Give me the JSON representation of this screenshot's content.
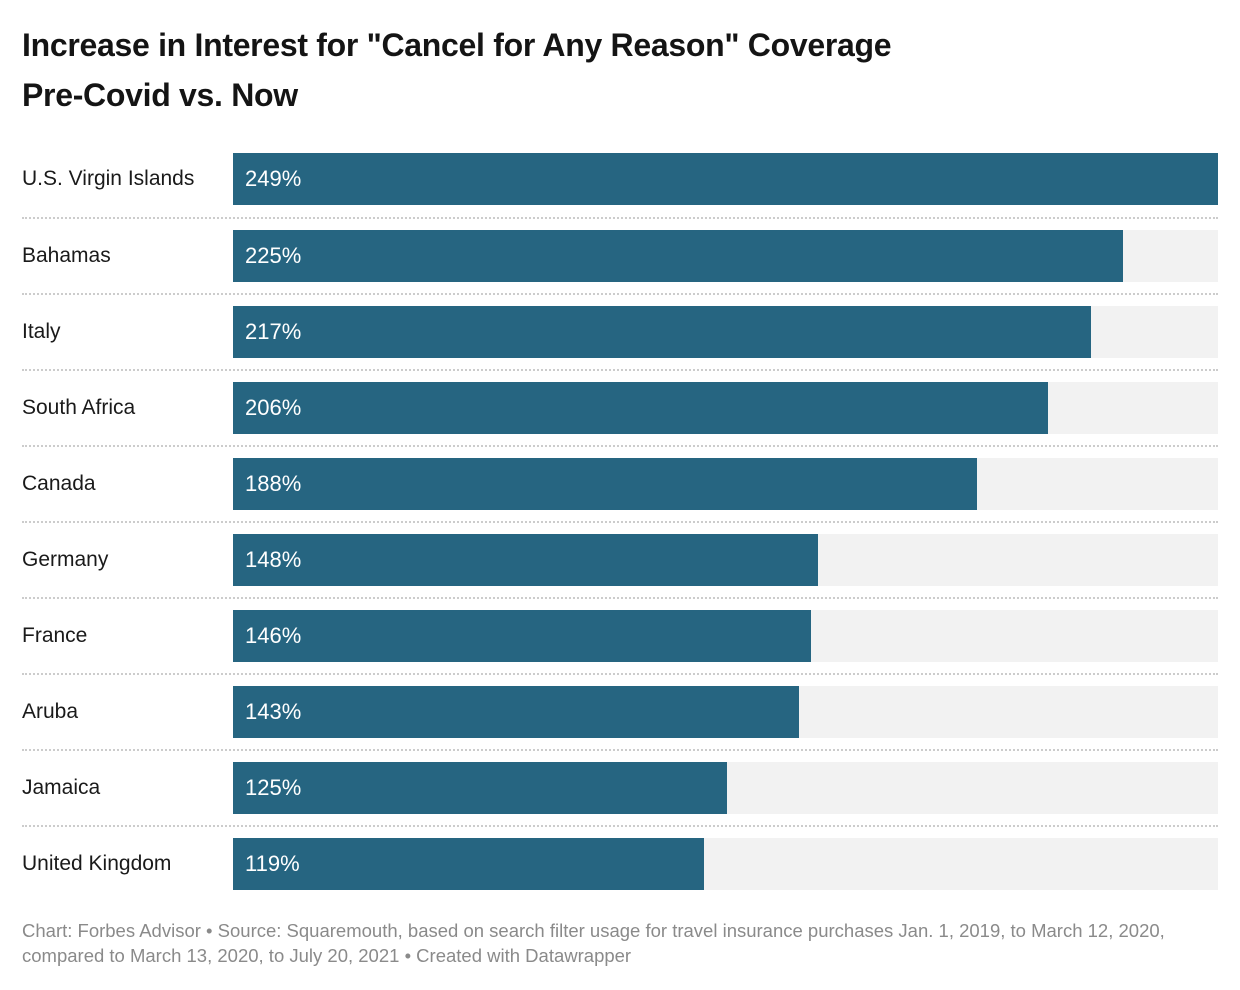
{
  "header": {
    "title_line1": "Increase in Interest for \"Cancel for Any Reason\" Coverage",
    "title_line2": "Pre-Covid vs. Now"
  },
  "footer": {
    "text": "Chart: Forbes Advisor • Source: Squaremouth, based on search filter usage for travel insurance purchases Jan. 1, 2019, to March 12, 2020, compared to March 13, 2020, to July 20, 2021 • Created with Datawrapper"
  },
  "chart_data": {
    "type": "bar",
    "orientation": "horizontal",
    "title": "Increase in Interest for \"Cancel for Any Reason\" Coverage Pre-Covid vs. Now",
    "categories": [
      "U.S. Virgin Islands",
      "Bahamas",
      "Italy",
      "South Africa",
      "Canada",
      "Germany",
      "France",
      "Aruba",
      "Jamaica",
      "United Kingdom"
    ],
    "values": [
      249,
      225,
      217,
      206,
      188,
      148,
      146,
      143,
      125,
      119
    ],
    "unit": "%",
    "xlim": [
      0,
      249
    ],
    "grid": false,
    "legend": false,
    "value_labels_position": "inside-start",
    "colors": {
      "bar": "#266581",
      "bar_track": "#f2f2f2",
      "separator": "#cccccc",
      "value_label": "#ffffff",
      "category_label": "#1a1a1a",
      "title": "#141414",
      "footer": "#8a8a8a"
    }
  }
}
